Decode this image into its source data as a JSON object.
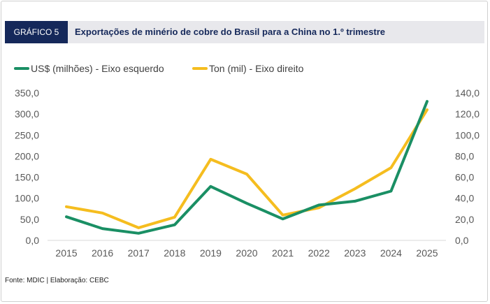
{
  "header": {
    "badge": "GRÁFICO 5",
    "title": "Exportações de minério de cobre do Brasil para a China no 1.º trimestre"
  },
  "source": "Fonte: MDIC | Elaboração: CEBC",
  "colors": {
    "series_left": "#1a8f64",
    "series_right": "#f5bd1f",
    "badge_bg": "#15285a",
    "header_bg": "#e8e8ec"
  },
  "chart_data": {
    "type": "line",
    "categories": [
      "2015",
      "2016",
      "2017",
      "2018",
      "2019",
      "2020",
      "2021",
      "2022",
      "2023",
      "2024",
      "2025"
    ],
    "series": [
      {
        "name": "US$ (milhões) - Eixo esquerdo",
        "axis": "left",
        "values": [
          56,
          28,
          17,
          37,
          128,
          88,
          51,
          84,
          93,
          117,
          330
        ]
      },
      {
        "name": "Ton (mil) - Eixo direito",
        "axis": "right",
        "values": [
          32,
          26,
          12,
          22,
          77,
          63,
          24,
          31,
          49,
          69,
          124
        ]
      }
    ],
    "y_left": {
      "min": 0,
      "max": 350,
      "step": 50,
      "tick_labels": [
        "0,0",
        "50,0",
        "100,0",
        "150,0",
        "200,0",
        "250,0",
        "300,0",
        "350,0"
      ]
    },
    "y_right": {
      "min": 0,
      "max": 140,
      "step": 20,
      "tick_labels": [
        "0,0",
        "20,0",
        "40,0",
        "60,0",
        "80,0",
        "100,0",
        "120,0",
        "140,0"
      ]
    },
    "legend_position": "top-left",
    "grid": false
  }
}
